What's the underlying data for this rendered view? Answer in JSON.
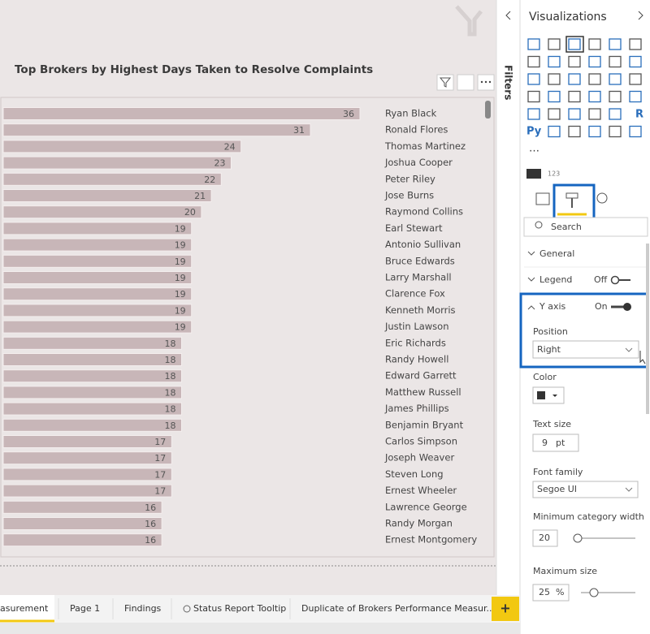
{
  "chart_data": {
    "type": "bar",
    "title": "Top Brokers by Highest Days Taken to Resolve Complaints",
    "categories": [
      "Ryan Black",
      "Ronald Flores",
      "Thomas Martinez",
      "Joshua Cooper",
      "Peter Riley",
      "Jose Burns",
      "Raymond Collins",
      "Earl Stewart",
      "Antonio Sullivan",
      "Bruce Edwards",
      "Larry Marshall",
      "Clarence Fox",
      "Kenneth Morris",
      "Justin Lawson",
      "Eric Richards",
      "Randy Howell",
      "Edward Garrett",
      "Matthew Russell",
      "James Phillips",
      "Benjamin Bryant",
      "Carlos Simpson",
      "Joseph Weaver",
      "Steven Long",
      "Ernest Wheeler",
      "Lawrence George",
      "Randy Morgan",
      "Ernest Montgomery"
    ],
    "values": [
      36,
      31,
      24,
      23,
      22,
      21,
      20,
      19,
      19,
      19,
      19,
      19,
      19,
      19,
      18,
      18,
      18,
      18,
      18,
      18,
      17,
      17,
      17,
      17,
      16,
      16,
      16
    ],
    "color": "#c8b6b8"
  },
  "ui": {
    "filters": "Filters",
    "panel_title": "Visualizations",
    "icon_r": "R",
    "icon_py": "Py",
    "icon_123": "123",
    "search": "Search",
    "general": "General",
    "legend": "Legend",
    "legend_state": "Off",
    "y_axis": "Y axis",
    "y_axis_state": "On",
    "position": "Position",
    "position_value": "Right",
    "color": "Color",
    "text_size": "Text size",
    "text_size_value": "9",
    "text_size_unit": "pt",
    "font_family": "Font family",
    "font_family_value": "Segoe UI",
    "min_category_width": "Minimum category width",
    "min_category_width_value": "20",
    "max_size": "Maximum size",
    "max_size_value": "25",
    "max_size_unit": "%",
    "tabs": [
      "asurement",
      "Page 1",
      "Findings",
      "Status Report Tooltip",
      "Duplicate of Brokers Performance Measur..."
    ],
    "add_page": "+"
  }
}
